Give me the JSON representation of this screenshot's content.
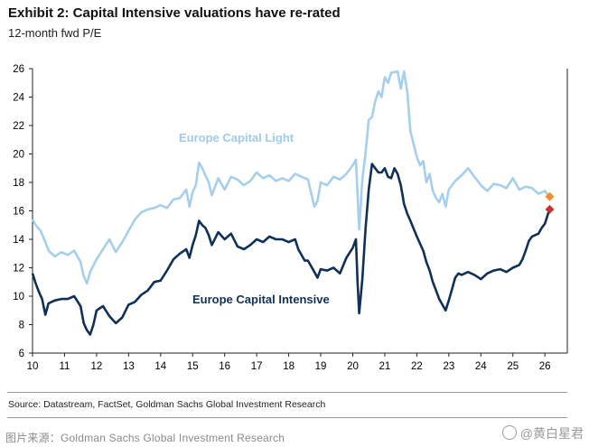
{
  "header": {
    "title": "Exhibit 2: Capital Intensive valuations have re-rated",
    "subtitle": "12-month fwd P/E"
  },
  "footer": {
    "source": "Source: Datastream, FactSet, Goldman Sachs Global Investment Research",
    "image_source": "图片来源：Goldman Sachs Global Investment Research",
    "watermark": "@黄白星君"
  },
  "chart_data": {
    "type": "line",
    "title": "Exhibit 2: Capital Intensive valuations have re-rated",
    "ylabel": "12-month fwd P/E",
    "xlim": [
      10,
      26.7
    ],
    "ylim": [
      6,
      26
    ],
    "x_ticks": [
      "10",
      "11",
      "12",
      "13",
      "14",
      "15",
      "16",
      "17",
      "18",
      "19",
      "20",
      "21",
      "22",
      "23",
      "24",
      "25",
      "26"
    ],
    "y_ticks": [
      "6",
      "8",
      "10",
      "12",
      "14",
      "16",
      "18",
      "20",
      "22",
      "24",
      "26"
    ],
    "grid": false,
    "series": [
      {
        "name": "Europe Capital Light",
        "color": "#a6cfec",
        "label_position": "above line, around 16-17",
        "points": [
          [
            10.0,
            15.4
          ],
          [
            10.1,
            15.0
          ],
          [
            10.25,
            14.6
          ],
          [
            10.4,
            13.8
          ],
          [
            10.5,
            13.2
          ],
          [
            10.7,
            12.8
          ],
          [
            10.9,
            13.1
          ],
          [
            11.1,
            12.9
          ],
          [
            11.3,
            13.2
          ],
          [
            11.5,
            12.4
          ],
          [
            11.6,
            11.4
          ],
          [
            11.7,
            10.9
          ],
          [
            11.8,
            11.7
          ],
          [
            12.0,
            12.6
          ],
          [
            12.2,
            13.3
          ],
          [
            12.4,
            14.0
          ],
          [
            12.6,
            13.1
          ],
          [
            12.8,
            13.8
          ],
          [
            13.0,
            14.6
          ],
          [
            13.2,
            15.4
          ],
          [
            13.4,
            15.9
          ],
          [
            13.6,
            16.1
          ],
          [
            13.8,
            16.2
          ],
          [
            14.0,
            16.4
          ],
          [
            14.2,
            16.2
          ],
          [
            14.4,
            16.8
          ],
          [
            14.6,
            16.9
          ],
          [
            14.8,
            17.5
          ],
          [
            14.9,
            16.3
          ],
          [
            15.0,
            17.3
          ],
          [
            15.1,
            17.8
          ],
          [
            15.2,
            19.4
          ],
          [
            15.3,
            19.0
          ],
          [
            15.4,
            18.5
          ],
          [
            15.5,
            18.0
          ],
          [
            15.6,
            17.1
          ],
          [
            15.8,
            18.3
          ],
          [
            16.0,
            17.5
          ],
          [
            16.2,
            18.4
          ],
          [
            16.4,
            18.2
          ],
          [
            16.6,
            17.8
          ],
          [
            16.8,
            18.1
          ],
          [
            17.0,
            18.7
          ],
          [
            17.2,
            18.3
          ],
          [
            17.4,
            18.5
          ],
          [
            17.6,
            18.1
          ],
          [
            17.8,
            18.3
          ],
          [
            18.0,
            18.1
          ],
          [
            18.2,
            18.6
          ],
          [
            18.4,
            18.4
          ],
          [
            18.6,
            18.2
          ],
          [
            18.8,
            16.3
          ],
          [
            18.9,
            16.7
          ],
          [
            19.0,
            18.0
          ],
          [
            19.2,
            17.8
          ],
          [
            19.4,
            18.4
          ],
          [
            19.6,
            18.2
          ],
          [
            19.8,
            18.6
          ],
          [
            20.0,
            19.2
          ],
          [
            20.1,
            19.6
          ],
          [
            20.2,
            14.7
          ],
          [
            20.3,
            18.2
          ],
          [
            20.4,
            20.1
          ],
          [
            20.5,
            22.4
          ],
          [
            20.6,
            22.6
          ],
          [
            20.7,
            23.7
          ],
          [
            20.8,
            24.4
          ],
          [
            20.9,
            24.0
          ],
          [
            21.0,
            25.4
          ],
          [
            21.1,
            25.0
          ],
          [
            21.2,
            25.7
          ],
          [
            21.4,
            25.8
          ],
          [
            21.5,
            24.6
          ],
          [
            21.6,
            25.8
          ],
          [
            21.7,
            24.4
          ],
          [
            21.8,
            21.6
          ],
          [
            22.0,
            19.8
          ],
          [
            22.1,
            19.2
          ],
          [
            22.2,
            19.5
          ],
          [
            22.3,
            18.0
          ],
          [
            22.4,
            18.6
          ],
          [
            22.5,
            17.4
          ],
          [
            22.6,
            16.9
          ],
          [
            22.7,
            16.6
          ],
          [
            22.8,
            17.2
          ],
          [
            22.9,
            16.3
          ],
          [
            23.0,
            17.5
          ],
          [
            23.2,
            18.1
          ],
          [
            23.4,
            18.5
          ],
          [
            23.6,
            19.0
          ],
          [
            23.8,
            18.4
          ],
          [
            24.0,
            17.8
          ],
          [
            24.2,
            17.4
          ],
          [
            24.4,
            17.9
          ],
          [
            24.6,
            17.8
          ],
          [
            24.8,
            17.6
          ],
          [
            25.0,
            18.3
          ],
          [
            25.2,
            17.5
          ],
          [
            25.4,
            17.7
          ],
          [
            25.6,
            17.6
          ],
          [
            25.8,
            17.2
          ],
          [
            26.0,
            17.4
          ],
          [
            26.1,
            17.1
          ],
          [
            26.15,
            17.0
          ]
        ],
        "last_value": 17.0,
        "marker_color": "#f28e2b"
      },
      {
        "name": "Europe Capital Intensive",
        "color": "#0f3157",
        "label_position": "below line, around 9-11",
        "points": [
          [
            10.0,
            11.6
          ],
          [
            10.1,
            10.9
          ],
          [
            10.2,
            10.3
          ],
          [
            10.3,
            9.8
          ],
          [
            10.4,
            8.7
          ],
          [
            10.5,
            9.5
          ],
          [
            10.7,
            9.7
          ],
          [
            10.9,
            9.8
          ],
          [
            11.1,
            9.8
          ],
          [
            11.3,
            10.0
          ],
          [
            11.5,
            9.3
          ],
          [
            11.6,
            8.1
          ],
          [
            11.7,
            7.6
          ],
          [
            11.8,
            7.3
          ],
          [
            11.9,
            8.0
          ],
          [
            12.0,
            9.0
          ],
          [
            12.2,
            9.3
          ],
          [
            12.4,
            8.6
          ],
          [
            12.6,
            8.1
          ],
          [
            12.8,
            8.5
          ],
          [
            13.0,
            9.4
          ],
          [
            13.2,
            9.6
          ],
          [
            13.4,
            10.1
          ],
          [
            13.6,
            10.4
          ],
          [
            13.8,
            11.0
          ],
          [
            14.0,
            11.1
          ],
          [
            14.2,
            11.8
          ],
          [
            14.4,
            12.6
          ],
          [
            14.6,
            13.0
          ],
          [
            14.8,
            13.3
          ],
          [
            14.9,
            12.7
          ],
          [
            15.0,
            13.6
          ],
          [
            15.1,
            14.3
          ],
          [
            15.2,
            15.3
          ],
          [
            15.3,
            15.0
          ],
          [
            15.4,
            14.8
          ],
          [
            15.5,
            14.3
          ],
          [
            15.6,
            13.6
          ],
          [
            15.8,
            14.5
          ],
          [
            16.0,
            14.0
          ],
          [
            16.2,
            14.4
          ],
          [
            16.4,
            13.5
          ],
          [
            16.6,
            13.3
          ],
          [
            16.8,
            13.6
          ],
          [
            17.0,
            14.0
          ],
          [
            17.2,
            13.8
          ],
          [
            17.4,
            14.2
          ],
          [
            17.6,
            14.0
          ],
          [
            17.8,
            14.0
          ],
          [
            18.0,
            13.8
          ],
          [
            18.2,
            14.0
          ],
          [
            18.3,
            13.3
          ],
          [
            18.5,
            12.5
          ],
          [
            18.6,
            12.5
          ],
          [
            18.8,
            11.7
          ],
          [
            18.9,
            11.3
          ],
          [
            19.0,
            11.9
          ],
          [
            19.2,
            11.8
          ],
          [
            19.4,
            12.0
          ],
          [
            19.6,
            11.6
          ],
          [
            19.8,
            12.7
          ],
          [
            20.0,
            13.4
          ],
          [
            20.1,
            14.0
          ],
          [
            20.15,
            11.0
          ],
          [
            20.2,
            8.8
          ],
          [
            20.3,
            11.2
          ],
          [
            20.4,
            14.8
          ],
          [
            20.5,
            17.5
          ],
          [
            20.6,
            19.3
          ],
          [
            20.7,
            19.0
          ],
          [
            20.8,
            18.7
          ],
          [
            20.9,
            18.7
          ],
          [
            21.0,
            19.0
          ],
          [
            21.1,
            18.4
          ],
          [
            21.2,
            18.3
          ],
          [
            21.3,
            19.0
          ],
          [
            21.4,
            18.6
          ],
          [
            21.5,
            17.8
          ],
          [
            21.6,
            16.5
          ],
          [
            21.7,
            15.8
          ],
          [
            21.8,
            15.3
          ],
          [
            22.0,
            14.2
          ],
          [
            22.2,
            13.2
          ],
          [
            22.3,
            12.4
          ],
          [
            22.4,
            11.8
          ],
          [
            22.5,
            11.0
          ],
          [
            22.6,
            10.4
          ],
          [
            22.7,
            9.8
          ],
          [
            22.8,
            9.4
          ],
          [
            22.9,
            9.0
          ],
          [
            23.0,
            9.7
          ],
          [
            23.1,
            10.5
          ],
          [
            23.2,
            11.3
          ],
          [
            23.3,
            11.6
          ],
          [
            23.4,
            11.5
          ],
          [
            23.6,
            11.7
          ],
          [
            23.8,
            11.5
          ],
          [
            24.0,
            11.2
          ],
          [
            24.2,
            11.6
          ],
          [
            24.4,
            11.8
          ],
          [
            24.6,
            11.9
          ],
          [
            24.8,
            11.7
          ],
          [
            25.0,
            12.0
          ],
          [
            25.2,
            12.2
          ],
          [
            25.3,
            12.6
          ],
          [
            25.4,
            13.2
          ],
          [
            25.5,
            13.9
          ],
          [
            25.6,
            14.2
          ],
          [
            25.8,
            14.4
          ],
          [
            25.9,
            14.8
          ],
          [
            26.0,
            15.1
          ],
          [
            26.1,
            15.8
          ],
          [
            26.15,
            16.1
          ]
        ],
        "last_value": 16.1,
        "marker_color": "#c4342d"
      }
    ]
  }
}
